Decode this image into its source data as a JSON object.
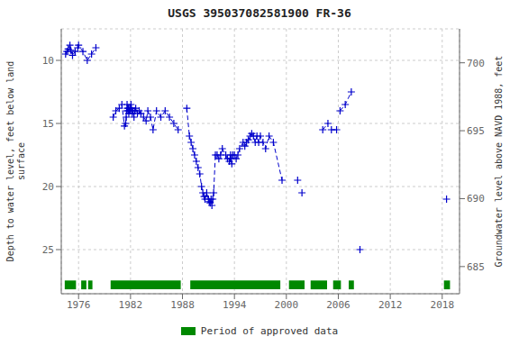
{
  "chart_data": {
    "type": "line",
    "title": "USGS 395037082581900 FR-36",
    "y_label": "Depth to water level, feet below land\nsurface",
    "y2_label": "Groundwater level above NAVD 1988, feet",
    "xlim": [
      1974,
      2020
    ],
    "xticks": [
      1976,
      1982,
      1988,
      1994,
      2000,
      2006,
      2012,
      2018
    ],
    "ylim": [
      28.5,
      7.5
    ],
    "yticks": [
      10,
      15,
      20,
      25
    ],
    "y2lim": [
      683.0,
      702.5
    ],
    "y2ticks": [
      685,
      690,
      695,
      700
    ],
    "grid": true,
    "legend": "bottom",
    "series": [
      {
        "color": "#0000cc",
        "line_style": "dashed",
        "marker": "plus",
        "x": [
          1974.5,
          1974.65,
          1974.8,
          1975.0,
          1975.1,
          1975.3,
          1975.6,
          1975.9,
          1976.0,
          1976.5,
          1977.0,
          1977.5,
          1978.0
        ],
        "values": [
          9.5,
          9.3,
          9.1,
          8.8,
          9.2,
          9.6,
          9.3,
          9.0,
          8.8,
          9.3,
          10.0,
          9.5,
          9.0
        ]
      },
      {
        "color": "#0000cc",
        "line_style": "dashed",
        "marker": "plus",
        "x": [
          1980.0,
          1980.3,
          1980.7,
          1981.0,
          1981.3,
          1981.45,
          1981.5,
          1981.55,
          1981.6,
          1981.65,
          1981.7,
          1981.75,
          1981.8,
          1981.85,
          1981.9,
          1981.95,
          1982.0,
          1982.05,
          1982.1,
          1982.15,
          1982.2,
          1982.3,
          1982.4,
          1982.5,
          1982.6,
          1982.8,
          1983.0,
          1983.2,
          1983.5,
          1983.8,
          1984.0,
          1984.3,
          1984.6,
          1985.0,
          1985.5,
          1986.0,
          1986.5,
          1987.0,
          1987.5
        ],
        "values": [
          14.5,
          14.0,
          13.8,
          13.5,
          15.2,
          15.0,
          14.5,
          14.0,
          13.5,
          13.8,
          14.0,
          13.8,
          14.2,
          14.0,
          13.8,
          14.0,
          13.8,
          13.5,
          13.8,
          14.0,
          14.2,
          14.0,
          14.5,
          14.0,
          13.8,
          14.2,
          14.0,
          14.2,
          14.5,
          14.8,
          14.0,
          14.5,
          15.5,
          14.0,
          14.5,
          14.0,
          14.5,
          15.0,
          15.5
        ]
      },
      {
        "color": "#0000cc",
        "line_style": "dashed",
        "marker": "plus",
        "x": [
          1988.5,
          1988.8,
          1989.0,
          1989.2,
          1989.4,
          1989.6,
          1989.8,
          1990.0,
          1990.2,
          1990.35,
          1990.5,
          1990.6,
          1990.8,
          1991.0,
          1991.1,
          1991.2,
          1991.3,
          1991.4,
          1991.5,
          1991.6,
          1991.8,
          1992.0,
          1992.2,
          1992.4,
          1992.6,
          1993.0,
          1993.2,
          1993.4,
          1993.5,
          1993.55,
          1993.6,
          1993.7,
          1993.8,
          1994.0,
          1994.2,
          1994.4,
          1994.6,
          1995.0,
          1995.2,
          1995.4,
          1995.6,
          1995.8,
          1996.0,
          1996.2,
          1996.4,
          1996.6,
          1996.8,
          1997.0,
          1997.3,
          1997.6,
          1998.0,
          1998.5,
          1999.5
        ],
        "values": [
          13.8,
          16.0,
          16.5,
          17.0,
          17.5,
          18.0,
          18.5,
          19.0,
          20.0,
          20.5,
          20.8,
          21.0,
          20.5,
          21.0,
          21.2,
          21.3,
          21.0,
          21.5,
          21.0,
          20.5,
          17.5,
          17.5,
          17.8,
          17.5,
          17.0,
          17.5,
          17.8,
          18.0,
          17.8,
          17.5,
          17.8,
          18.2,
          17.5,
          17.5,
          17.8,
          17.5,
          17.0,
          16.5,
          16.8,
          16.5,
          16.3,
          16.0,
          15.8,
          16.0,
          16.5,
          16.0,
          16.5,
          16.0,
          16.5,
          17.0,
          16.0,
          16.5,
          19.5
        ]
      },
      {
        "color": "#0000cc",
        "line_style": "dashed",
        "marker": "plus",
        "x": [
          2001.3
        ],
        "values": [
          19.5
        ]
      },
      {
        "color": "#0000cc",
        "line_style": "dashed",
        "marker": "plus",
        "x": [
          2001.8
        ],
        "values": [
          20.5
        ]
      },
      {
        "color": "#0000cc",
        "line_style": "dashed",
        "marker": "plus",
        "x": [
          2004.2,
          2004.8
        ],
        "values": [
          15.5,
          15.0
        ]
      },
      {
        "color": "#0000cc",
        "line_style": "dashed",
        "marker": "plus",
        "x": [
          2005.2,
          2005.8
        ],
        "values": [
          15.5,
          15.5
        ]
      },
      {
        "color": "#0000cc",
        "line_style": "dashed",
        "marker": "plus",
        "x": [
          2006.2,
          2006.8,
          2007.5
        ],
        "values": [
          14.0,
          13.5,
          12.5
        ]
      },
      {
        "color": "#0000cc",
        "line_style": "dashed",
        "marker": "plus",
        "x": [
          2008.5
        ],
        "values": [
          25.0
        ]
      },
      {
        "color": "#0000cc",
        "line_style": "dashed",
        "marker": "plus",
        "x": [
          2018.5
        ],
        "values": [
          21.0
        ]
      }
    ],
    "ranges": {
      "name": "Period of approved data",
      "color": "#008800",
      "y": 27.8,
      "height": 0.7,
      "periods": [
        [
          1974.4,
          1975.7
        ],
        [
          1976.3,
          1976.9
        ],
        [
          1977.1,
          1977.6
        ],
        [
          1979.7,
          1987.8
        ],
        [
          1988.9,
          1999.3
        ],
        [
          2000.3,
          2002.1
        ],
        [
          2002.8,
          2004.7
        ],
        [
          2005.4,
          2006.3
        ],
        [
          2007.2,
          2007.8
        ],
        [
          2018.2,
          2018.9
        ]
      ]
    }
  }
}
